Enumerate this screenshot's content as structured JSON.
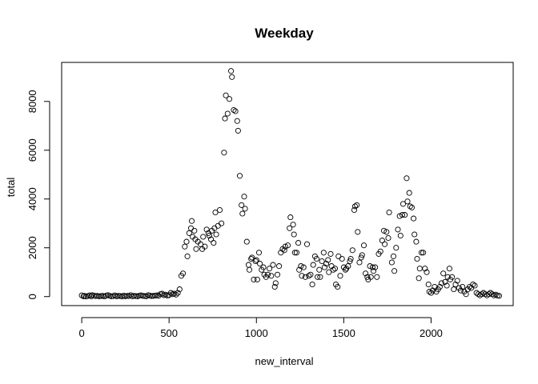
{
  "chart_data": {
    "type": "scatter",
    "title": "Weekday",
    "xlabel": "new_interval",
    "ylabel": "total",
    "xlim": [
      -115,
      2470
    ],
    "ylim": [
      -370,
      9600
    ],
    "xticks": [
      0,
      500,
      1000,
      1500,
      2000
    ],
    "yticks": [
      0,
      2000,
      4000,
      6000,
      8000
    ],
    "grid": false,
    "series": [
      {
        "points": [
          [
            0,
            50
          ],
          [
            10,
            10
          ],
          [
            15,
            30
          ],
          [
            25,
            5
          ],
          [
            35,
            20
          ],
          [
            45,
            50
          ],
          [
            55,
            10
          ],
          [
            60,
            60
          ],
          [
            70,
            40
          ],
          [
            80,
            20
          ],
          [
            90,
            30
          ],
          [
            100,
            10
          ],
          [
            110,
            20
          ],
          [
            120,
            30
          ],
          [
            130,
            5
          ],
          [
            140,
            40
          ],
          [
            150,
            60
          ],
          [
            160,
            30
          ],
          [
            170,
            10
          ],
          [
            180,
            20
          ],
          [
            190,
            50
          ],
          [
            200,
            10
          ],
          [
            210,
            30
          ],
          [
            220,
            20
          ],
          [
            230,
            5
          ],
          [
            240,
            40
          ],
          [
            250,
            10
          ],
          [
            260,
            30
          ],
          [
            270,
            20
          ],
          [
            280,
            60
          ],
          [
            290,
            10
          ],
          [
            300,
            30
          ],
          [
            310,
            20
          ],
          [
            320,
            10
          ],
          [
            330,
            40
          ],
          [
            340,
            50
          ],
          [
            350,
            30
          ],
          [
            360,
            20
          ],
          [
            370,
            10
          ],
          [
            380,
            60
          ],
          [
            390,
            40
          ],
          [
            400,
            20
          ],
          [
            410,
            30
          ],
          [
            420,
            40
          ],
          [
            430,
            50
          ],
          [
            440,
            30
          ],
          [
            450,
            100
          ],
          [
            460,
            120
          ],
          [
            470,
            60
          ],
          [
            480,
            80
          ],
          [
            490,
            40
          ],
          [
            500,
            60
          ],
          [
            510,
            150
          ],
          [
            520,
            100
          ],
          [
            530,
            120
          ],
          [
            540,
            80
          ],
          [
            550,
            150
          ],
          [
            560,
            300
          ],
          [
            570,
            850
          ],
          [
            580,
            950
          ],
          [
            590,
            2050
          ],
          [
            600,
            2250
          ],
          [
            605,
            1650
          ],
          [
            615,
            2600
          ],
          [
            625,
            2800
          ],
          [
            630,
            3100
          ],
          [
            635,
            2450
          ],
          [
            645,
            2700
          ],
          [
            650,
            2350
          ],
          [
            655,
            1950
          ],
          [
            665,
            2250
          ],
          [
            680,
            2150
          ],
          [
            690,
            1950
          ],
          [
            695,
            2450
          ],
          [
            705,
            2050
          ],
          [
            715,
            2750
          ],
          [
            725,
            2600
          ],
          [
            730,
            2500
          ],
          [
            740,
            2350
          ],
          [
            745,
            2700
          ],
          [
            755,
            2200
          ],
          [
            760,
            2800
          ],
          [
            765,
            3450
          ],
          [
            770,
            2550
          ],
          [
            780,
            2900
          ],
          [
            790,
            3550
          ],
          [
            800,
            3000
          ],
          [
            815,
            5900
          ],
          [
            820,
            7300
          ],
          [
            825,
            8250
          ],
          [
            835,
            7500
          ],
          [
            845,
            8100
          ],
          [
            855,
            9250
          ],
          [
            860,
            9000
          ],
          [
            870,
            7650
          ],
          [
            880,
            7600
          ],
          [
            890,
            7200
          ],
          [
            895,
            6800
          ],
          [
            905,
            4950
          ],
          [
            915,
            3750
          ],
          [
            920,
            3400
          ],
          [
            930,
            4100
          ],
          [
            935,
            3600
          ],
          [
            945,
            2250
          ],
          [
            955,
            1300
          ],
          [
            960,
            1100
          ],
          [
            970,
            1550
          ],
          [
            975,
            1600
          ],
          [
            985,
            700
          ],
          [
            995,
            1450
          ],
          [
            1000,
            1500
          ],
          [
            1005,
            700
          ],
          [
            1015,
            1800
          ],
          [
            1020,
            1350
          ],
          [
            1030,
            1100
          ],
          [
            1040,
            1200
          ],
          [
            1045,
            900
          ],
          [
            1055,
            800
          ],
          [
            1065,
            900
          ],
          [
            1075,
            1150
          ],
          [
            1085,
            850
          ],
          [
            1095,
            1300
          ],
          [
            1105,
            400
          ],
          [
            1110,
            550
          ],
          [
            1120,
            900
          ],
          [
            1130,
            1250
          ],
          [
            1140,
            1800
          ],
          [
            1150,
            1950
          ],
          [
            1160,
            1900
          ],
          [
            1165,
            2050
          ],
          [
            1180,
            2100
          ],
          [
            1190,
            2800
          ],
          [
            1195,
            3250
          ],
          [
            1210,
            2950
          ],
          [
            1215,
            2550
          ],
          [
            1220,
            1800
          ],
          [
            1230,
            1800
          ],
          [
            1240,
            2200
          ],
          [
            1245,
            1100
          ],
          [
            1255,
            1250
          ],
          [
            1260,
            850
          ],
          [
            1270,
            1200
          ],
          [
            1280,
            800
          ],
          [
            1290,
            2150
          ],
          [
            1300,
            850
          ],
          [
            1310,
            900
          ],
          [
            1320,
            500
          ],
          [
            1325,
            1300
          ],
          [
            1335,
            1650
          ],
          [
            1345,
            1550
          ],
          [
            1350,
            800
          ],
          [
            1360,
            1100
          ],
          [
            1365,
            800
          ],
          [
            1375,
            1450
          ],
          [
            1385,
            1800
          ],
          [
            1390,
            1200
          ],
          [
            1400,
            1350
          ],
          [
            1410,
            1500
          ],
          [
            1415,
            1000
          ],
          [
            1425,
            1750
          ],
          [
            1430,
            1250
          ],
          [
            1440,
            1100
          ],
          [
            1450,
            1150
          ],
          [
            1455,
            500
          ],
          [
            1465,
            400
          ],
          [
            1470,
            1650
          ],
          [
            1480,
            850
          ],
          [
            1490,
            1550
          ],
          [
            1500,
            1200
          ],
          [
            1510,
            1100
          ],
          [
            1515,
            1150
          ],
          [
            1525,
            1250
          ],
          [
            1535,
            1450
          ],
          [
            1540,
            1550
          ],
          [
            1550,
            1900
          ],
          [
            1560,
            3550
          ],
          [
            1565,
            3700
          ],
          [
            1575,
            3750
          ],
          [
            1580,
            2650
          ],
          [
            1590,
            1400
          ],
          [
            1600,
            1600
          ],
          [
            1605,
            1700
          ],
          [
            1615,
            2100
          ],
          [
            1625,
            950
          ],
          [
            1635,
            800
          ],
          [
            1640,
            700
          ],
          [
            1650,
            1250
          ],
          [
            1655,
            800
          ],
          [
            1665,
            1200
          ],
          [
            1670,
            1050
          ],
          [
            1680,
            1200
          ],
          [
            1690,
            800
          ],
          [
            1700,
            1750
          ],
          [
            1710,
            1850
          ],
          [
            1720,
            2300
          ],
          [
            1730,
            2700
          ],
          [
            1735,
            2150
          ],
          [
            1745,
            2650
          ],
          [
            1755,
            2400
          ],
          [
            1760,
            3450
          ],
          [
            1775,
            1400
          ],
          [
            1785,
            1650
          ],
          [
            1790,
            1050
          ],
          [
            1800,
            2000
          ],
          [
            1810,
            2750
          ],
          [
            1820,
            3300
          ],
          [
            1825,
            2500
          ],
          [
            1835,
            3350
          ],
          [
            1840,
            3800
          ],
          [
            1850,
            3350
          ],
          [
            1860,
            4850
          ],
          [
            1865,
            3900
          ],
          [
            1875,
            4250
          ],
          [
            1880,
            3700
          ],
          [
            1890,
            3650
          ],
          [
            1900,
            3200
          ],
          [
            1905,
            2550
          ],
          [
            1915,
            2250
          ],
          [
            1920,
            1550
          ],
          [
            1930,
            750
          ],
          [
            1935,
            1150
          ],
          [
            1945,
            1800
          ],
          [
            1955,
            1800
          ],
          [
            1965,
            1150
          ],
          [
            1975,
            1000
          ],
          [
            1985,
            500
          ],
          [
            1990,
            200
          ],
          [
            2000,
            150
          ],
          [
            2010,
            250
          ],
          [
            2020,
            400
          ],
          [
            2030,
            200
          ],
          [
            2040,
            300
          ],
          [
            2050,
            400
          ],
          [
            2060,
            550
          ],
          [
            2070,
            950
          ],
          [
            2080,
            600
          ],
          [
            2090,
            450
          ],
          [
            2095,
            800
          ],
          [
            2105,
            1150
          ],
          [
            2110,
            700
          ],
          [
            2120,
            800
          ],
          [
            2130,
            300
          ],
          [
            2140,
            500
          ],
          [
            2150,
            650
          ],
          [
            2160,
            350
          ],
          [
            2170,
            250
          ],
          [
            2180,
            400
          ],
          [
            2190,
            200
          ],
          [
            2200,
            100
          ],
          [
            2210,
            300
          ],
          [
            2220,
            400
          ],
          [
            2230,
            350
          ],
          [
            2240,
            500
          ],
          [
            2250,
            450
          ],
          [
            2260,
            150
          ],
          [
            2270,
            100
          ],
          [
            2280,
            50
          ],
          [
            2290,
            100
          ],
          [
            2300,
            150
          ],
          [
            2310,
            100
          ],
          [
            2320,
            50
          ],
          [
            2330,
            100
          ],
          [
            2340,
            150
          ],
          [
            2350,
            100
          ],
          [
            2360,
            50
          ],
          [
            2370,
            80
          ],
          [
            2380,
            40
          ],
          [
            2390,
            30
          ]
        ]
      }
    ]
  }
}
